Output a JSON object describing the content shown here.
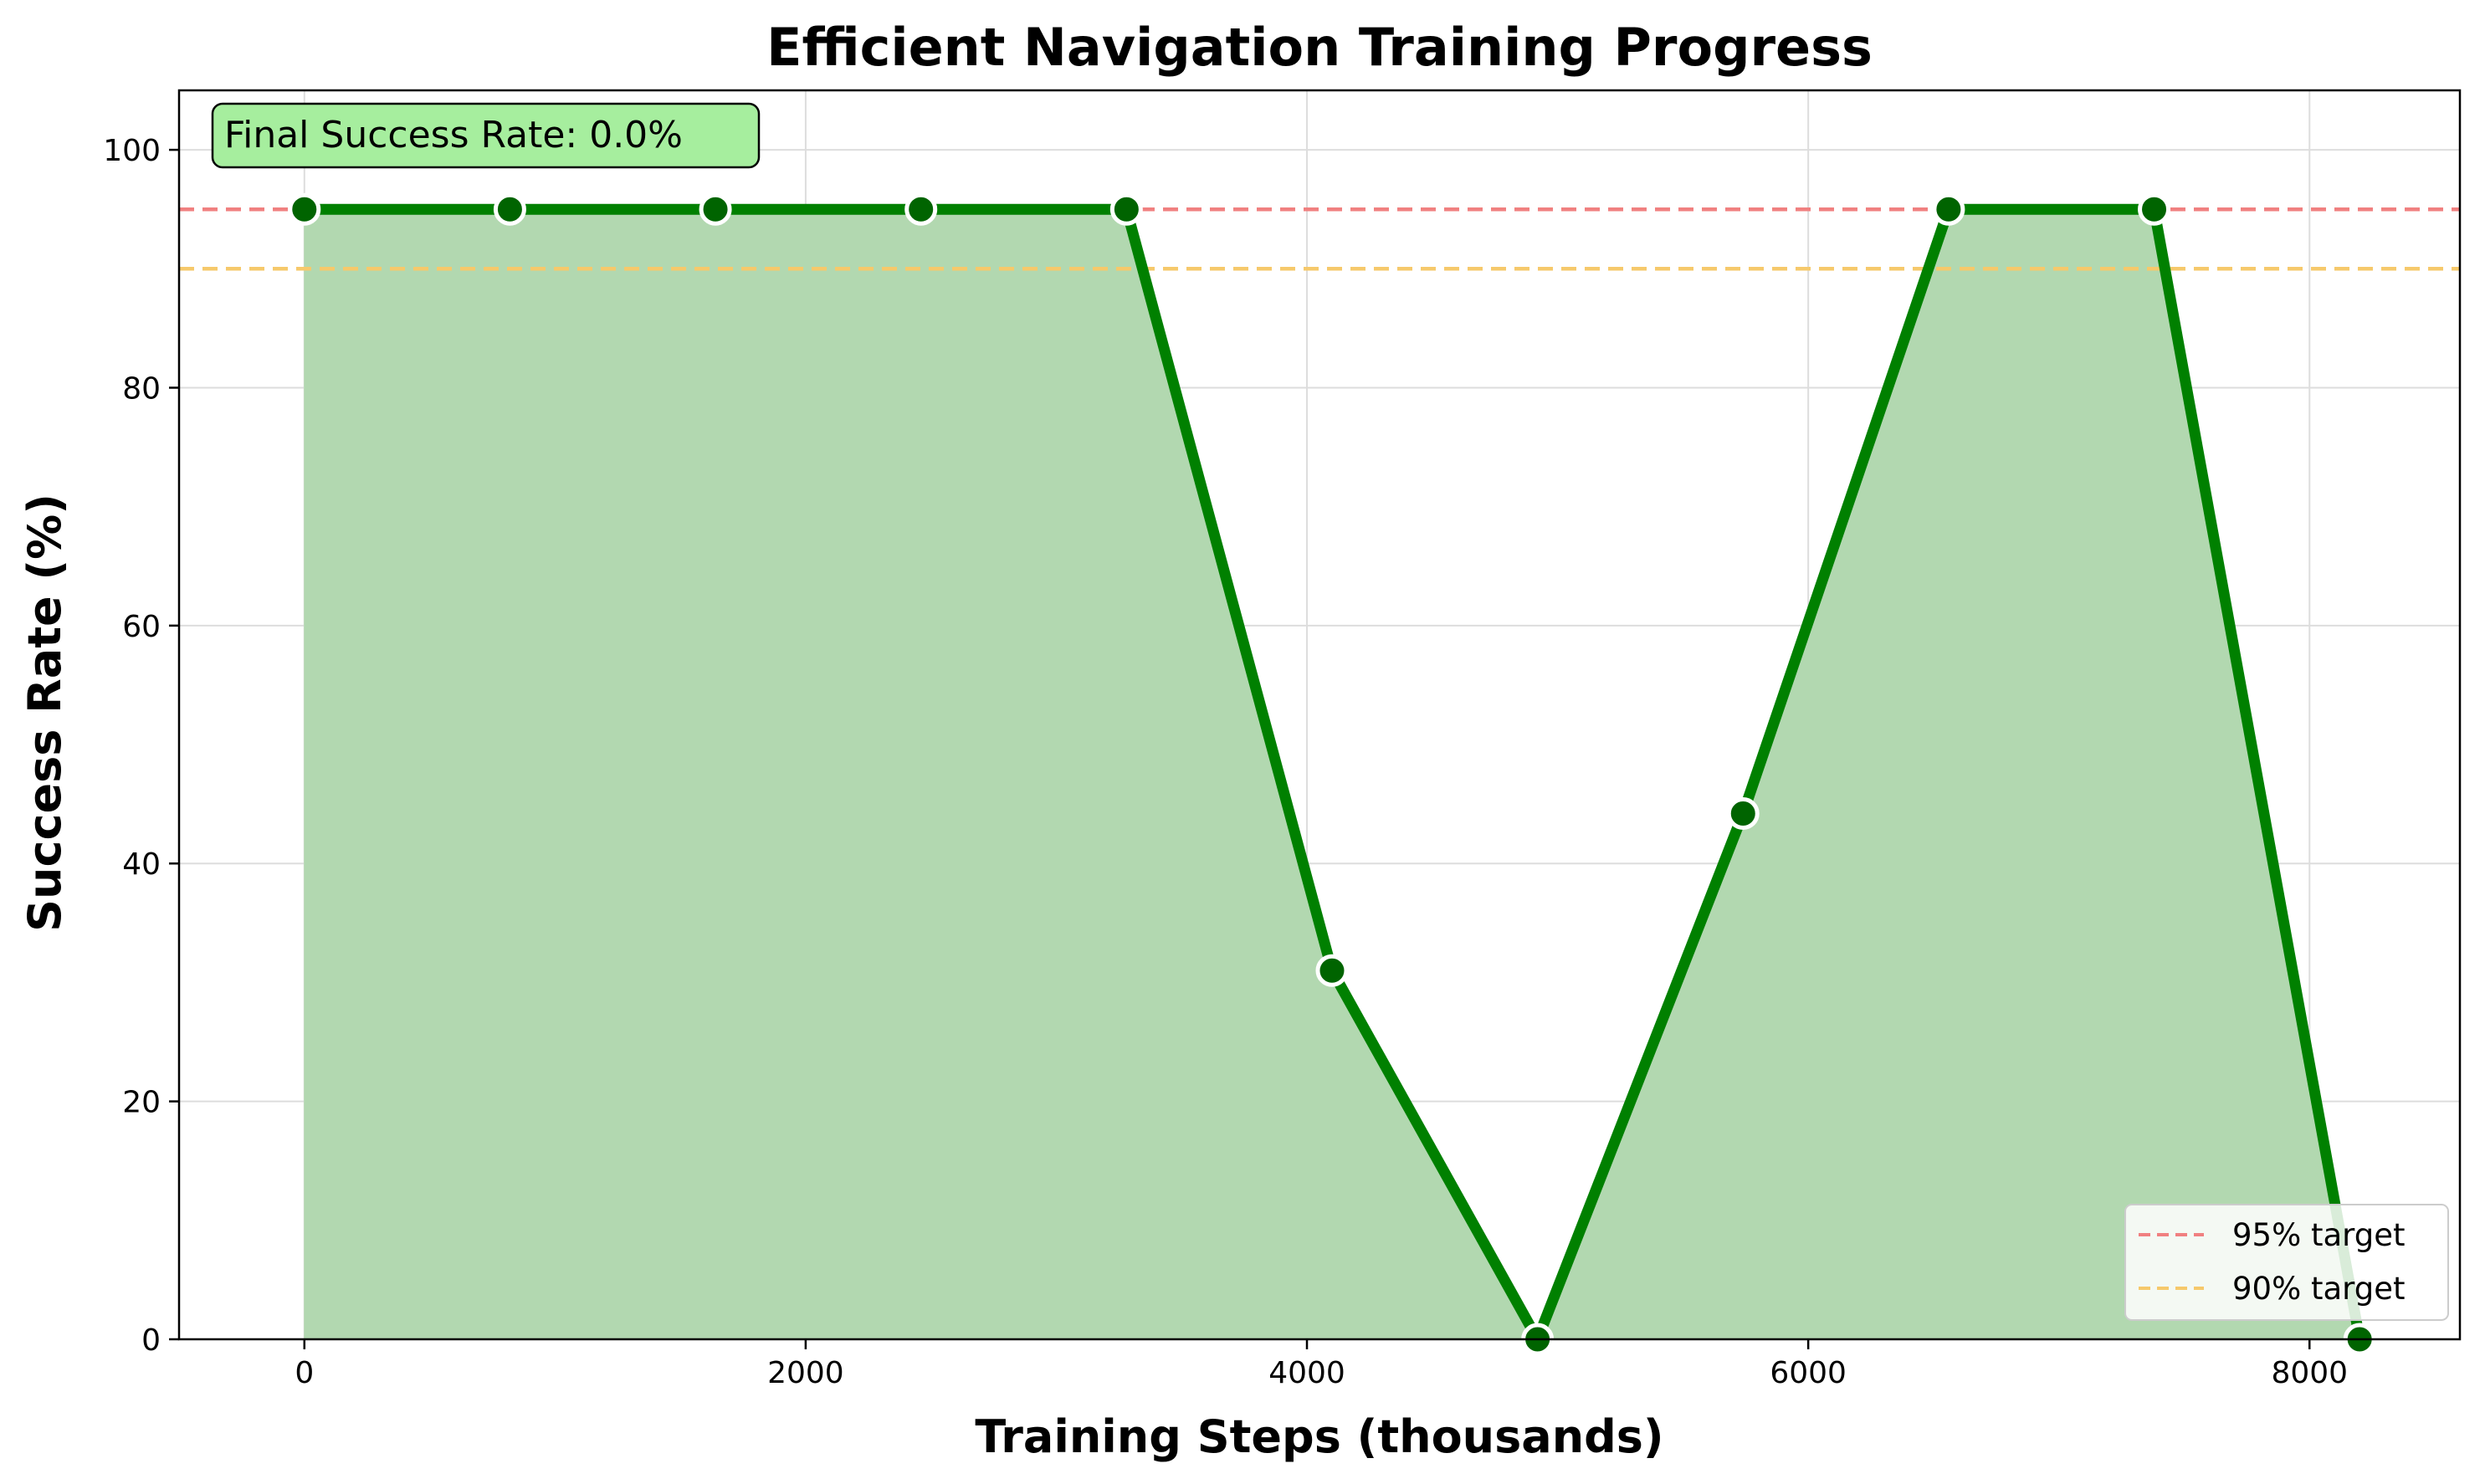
{
  "chart_data": {
    "type": "area",
    "title": "Efficient Navigation Training Progress",
    "xlabel": "Training Steps (thousands)",
    "ylabel": "Success Rate (%)",
    "xlim": [
      -500,
      8600
    ],
    "ylim": [
      0,
      105
    ],
    "xticks": [
      0,
      2000,
      4000,
      6000,
      8000
    ],
    "yticks": [
      0,
      20,
      40,
      60,
      80,
      100
    ],
    "grid": true,
    "series": [
      {
        "x": [
          0,
          820,
          1640,
          2460,
          3280,
          4100,
          4920,
          5740,
          6560,
          7380,
          8200
        ],
        "values": [
          95,
          95,
          95,
          95,
          95,
          31,
          0,
          44.2,
          95,
          95,
          0
        ],
        "color": "#008000",
        "fill_color": "#b2d8b0",
        "marker_color": "#006400"
      }
    ],
    "reference_lines": [
      {
        "y": 95,
        "label": "95% target",
        "color": "#f08080"
      },
      {
        "y": 90,
        "label": "90% target",
        "color": "#f6c96b"
      }
    ],
    "legend_position": "lower-right",
    "annotation": {
      "text": "Final Success Rate: 0.0%",
      "background": "#a6ee9e",
      "position": "top-left"
    }
  }
}
